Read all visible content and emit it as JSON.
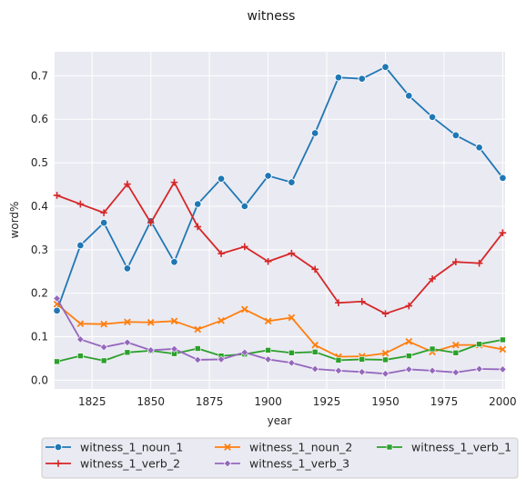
{
  "chart_data": {
    "type": "line",
    "title": "witness",
    "xlabel": "year",
    "ylabel": "word%",
    "xlim": [
      1809,
      2001
    ],
    "ylim": [
      -0.02,
      0.755
    ],
    "xticks": [
      1825,
      1850,
      1875,
      1900,
      1925,
      1950,
      1975,
      2000
    ],
    "yticks": [
      0.0,
      0.1,
      0.2,
      0.3,
      0.4,
      0.5,
      0.6,
      0.7
    ],
    "x": [
      1810,
      1820,
      1830,
      1840,
      1850,
      1860,
      1870,
      1880,
      1890,
      1900,
      1910,
      1920,
      1930,
      1940,
      1950,
      1960,
      1970,
      1980,
      1990,
      2000
    ],
    "grid": true,
    "legend_position": "bottom",
    "series": [
      {
        "name": "witness_1_noun_1",
        "color": "#1f77b4",
        "marker": "circle",
        "values": [
          0.16,
          0.31,
          0.362,
          0.257,
          0.366,
          0.272,
          0.405,
          0.463,
          0.4,
          0.47,
          0.455,
          0.568,
          0.696,
          0.693,
          0.72,
          0.654,
          0.605,
          0.563,
          0.535,
          0.465
        ]
      },
      {
        "name": "witness_1_noun_2",
        "color": "#ff7f0e",
        "marker": "x",
        "values": [
          0.175,
          0.13,
          0.129,
          0.134,
          0.133,
          0.136,
          0.117,
          0.137,
          0.163,
          0.136,
          0.144,
          0.081,
          0.054,
          0.055,
          0.062,
          0.089,
          0.065,
          0.081,
          0.081,
          0.071
        ]
      },
      {
        "name": "witness_1_verb_1",
        "color": "#2ca02c",
        "marker": "square",
        "values": [
          0.043,
          0.056,
          0.045,
          0.064,
          0.068,
          0.061,
          0.073,
          0.056,
          0.06,
          0.069,
          0.063,
          0.065,
          0.046,
          0.048,
          0.047,
          0.056,
          0.072,
          0.063,
          0.083,
          0.093
        ]
      },
      {
        "name": "witness_1_verb_2",
        "color": "#d62728",
        "marker": "plus",
        "values": [
          0.425,
          0.405,
          0.385,
          0.451,
          0.362,
          0.455,
          0.353,
          0.291,
          0.307,
          0.273,
          0.292,
          0.255,
          0.178,
          0.181,
          0.153,
          0.171,
          0.233,
          0.272,
          0.269,
          0.339
        ]
      },
      {
        "name": "witness_1_verb_3",
        "color": "#9467bd",
        "marker": "diamond",
        "values": [
          0.188,
          0.094,
          0.076,
          0.087,
          0.069,
          0.072,
          0.047,
          0.048,
          0.064,
          0.048,
          0.04,
          0.026,
          0.022,
          0.019,
          0.015,
          0.025,
          0.022,
          0.018,
          0.026,
          0.025
        ]
      }
    ]
  }
}
